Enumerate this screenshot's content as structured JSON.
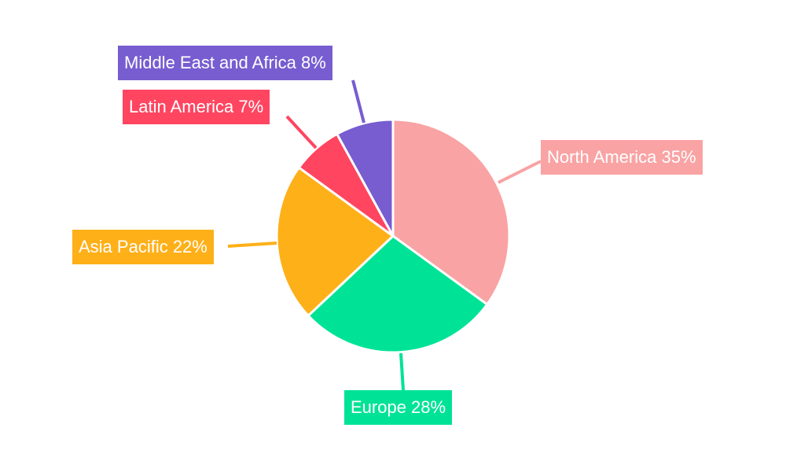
{
  "chart_data": {
    "type": "pie",
    "start_angle": "12 o'clock",
    "direction": "clockwise",
    "legend": "none",
    "slices": [
      {
        "label": "North America",
        "value": 35,
        "display": "North America 35%",
        "color": "#F9A3A4"
      },
      {
        "label": "Europe",
        "value": 28,
        "display": "Europe 28%",
        "color": "#00E396"
      },
      {
        "label": "Asia Pacific",
        "value": 22,
        "display": "Asia Pacific 22%",
        "color": "#FEB019"
      },
      {
        "label": "Latin America",
        "value": 7,
        "display": "Latin America 7%",
        "color": "#FF4560"
      },
      {
        "label": "Middle East and Africa",
        "value": 8,
        "display": "Middle East and Africa 8%",
        "color": "#775DD0"
      }
    ]
  }
}
